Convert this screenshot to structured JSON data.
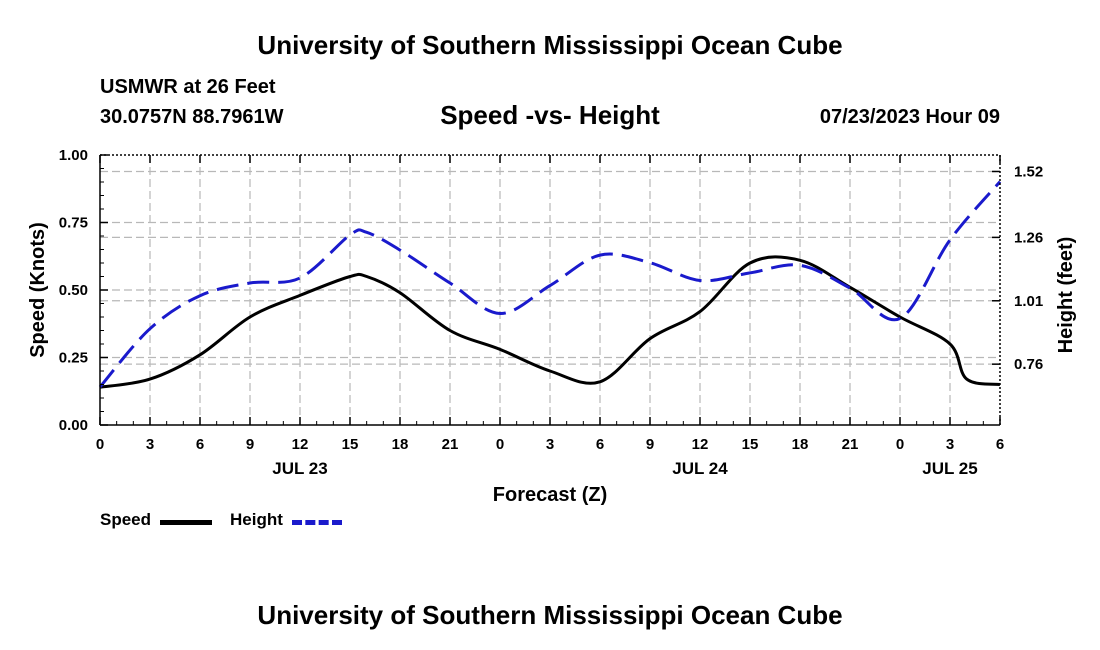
{
  "header": {
    "title": "University of Southern Mississippi Ocean Cube",
    "station": "USMWR at 26 Feet",
    "coordinates": "30.0757N  88.7961W",
    "datetime": "07/23/2023 Hour 09"
  },
  "footer": {
    "title": "University of Southern Mississippi Ocean Cube"
  },
  "colors": {
    "speed": "#000000",
    "height": "#1a1acc",
    "grid": "#b8b8b8"
  },
  "chart_data": {
    "type": "line",
    "title": "Speed -vs- Height",
    "xlabel": "Forecast (Z)",
    "ylabel": "Speed (Knots)",
    "y2label": "Height (feet)",
    "x_tick_labels": [
      "0",
      "3",
      "6",
      "9",
      "12",
      "15",
      "18",
      "21",
      "0",
      "3",
      "6",
      "9",
      "12",
      "15",
      "18",
      "21",
      "0",
      "3",
      "6"
    ],
    "date_labels": [
      {
        "label": "JUL 23",
        "at_tick": 4
      },
      {
        "label": "JUL 24",
        "at_tick": 12
      },
      {
        "label": "JUL 25",
        "at_tick": 17
      }
    ],
    "x_range_hours": [
      0,
      54
    ],
    "ylim": [
      0,
      1
    ],
    "y_ticks": [
      "0.00",
      "0.25",
      "0.50",
      "0.75",
      "1.00"
    ],
    "y2_ticks": [
      "0.76",
      "1.01",
      "1.26",
      "1.52"
    ],
    "series": [
      {
        "name": "Speed",
        "axis": "left",
        "style": "solid",
        "x": [
          0,
          3,
          6,
          9,
          12,
          15,
          16,
          18,
          21,
          24,
          27,
          30,
          33,
          36,
          39,
          42,
          45,
          48,
          51,
          52,
          54
        ],
        "values": [
          0.14,
          0.17,
          0.26,
          0.4,
          0.48,
          0.55,
          0.55,
          0.49,
          0.35,
          0.28,
          0.2,
          0.16,
          0.32,
          0.42,
          0.6,
          0.61,
          0.51,
          0.4,
          0.3,
          0.17,
          0.15
        ]
      },
      {
        "name": "Height",
        "axis": "right",
        "style": "dashed",
        "x": [
          0,
          3,
          6,
          9,
          12,
          15,
          16,
          18,
          21,
          24,
          27,
          30,
          33,
          36,
          39,
          42,
          45,
          48,
          51,
          54
        ],
        "values": [
          0.67,
          0.9,
          1.03,
          1.08,
          1.1,
          1.27,
          1.28,
          1.21,
          1.08,
          0.96,
          1.07,
          1.19,
          1.16,
          1.09,
          1.12,
          1.15,
          1.06,
          0.94,
          1.25,
          1.48
        ]
      }
    ],
    "legend": [
      "Speed",
      "Height"
    ]
  }
}
